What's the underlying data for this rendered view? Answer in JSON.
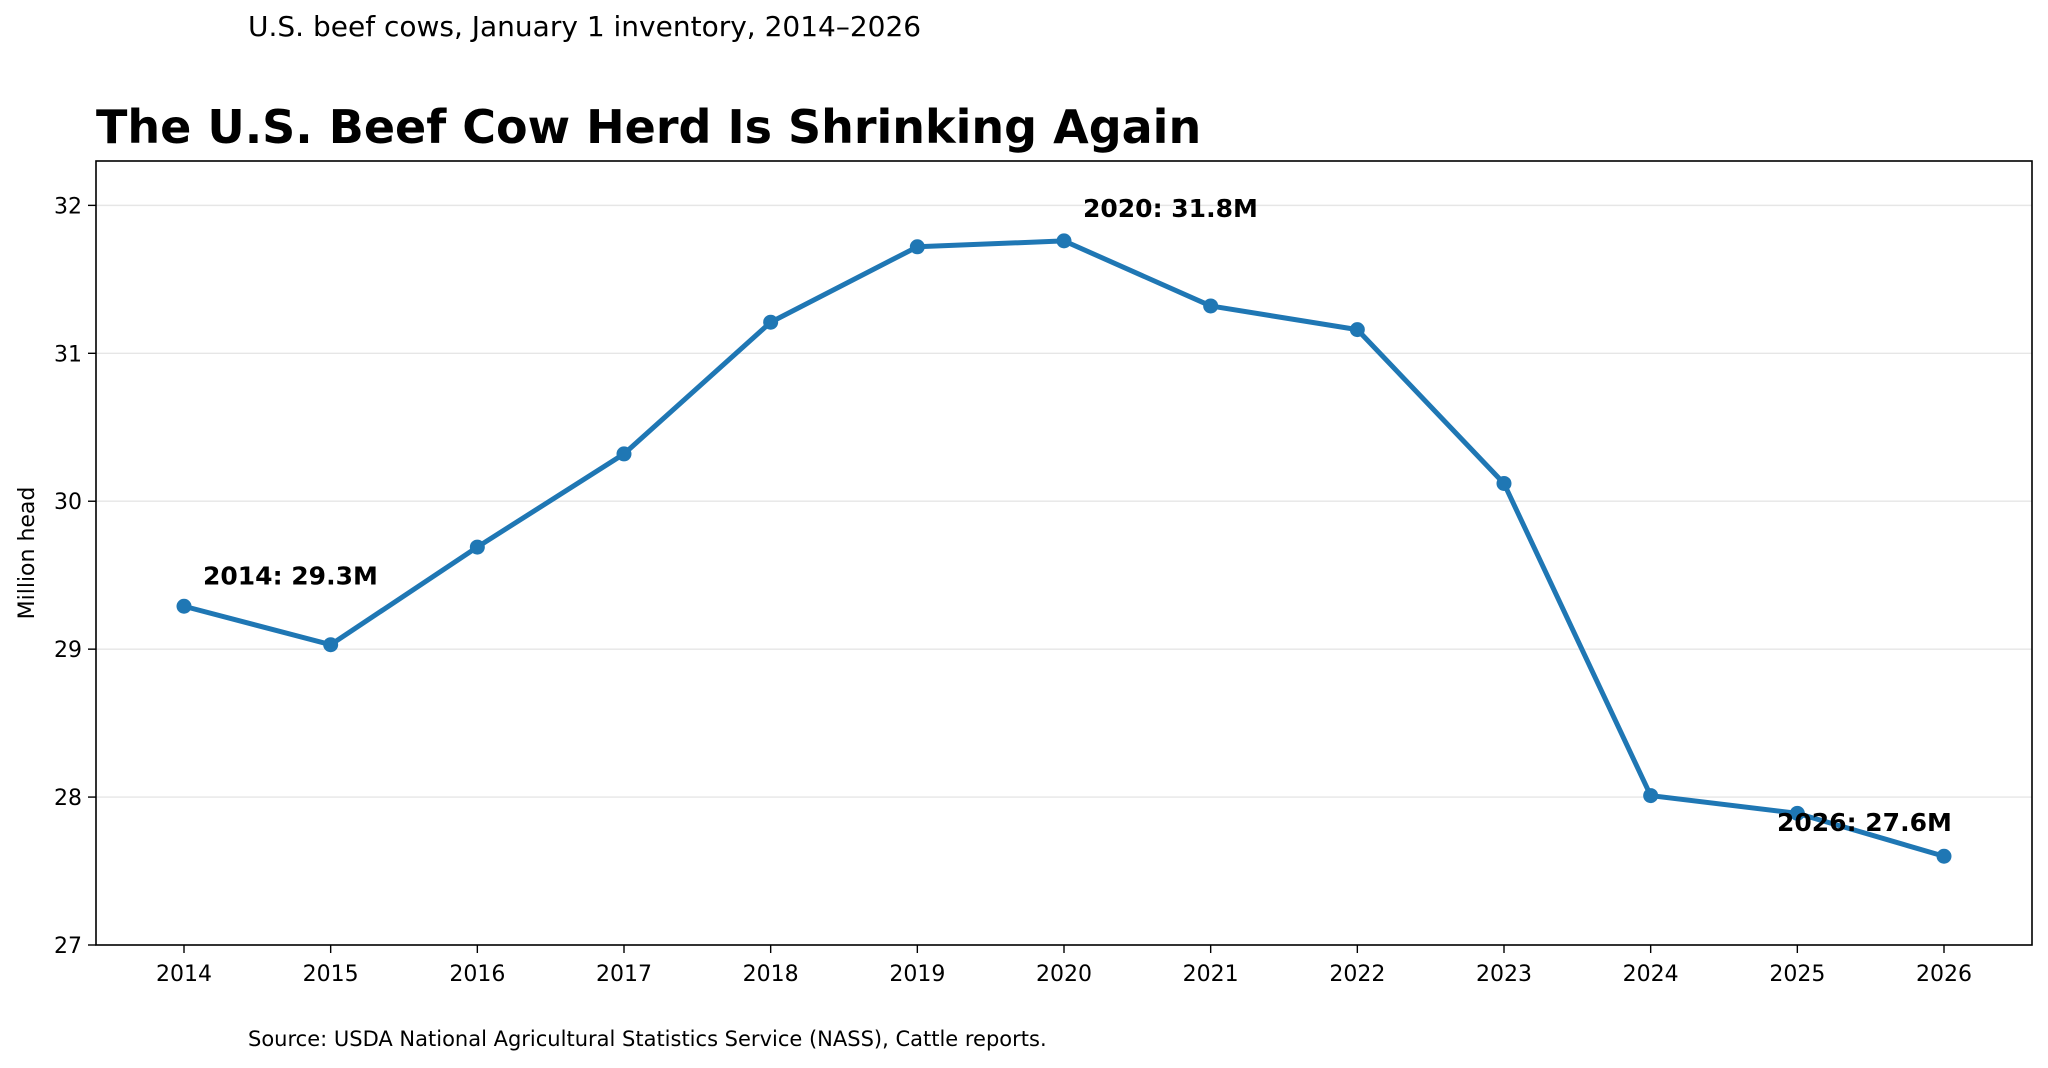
{
  "subtitle": "U.S. beef cows, January 1 inventory, 2014–2026",
  "source": "Source: USDA National Agricultural Statistics Service (NASS), Cattle reports.",
  "colors": {
    "line": "#1f77b4",
    "grid": "#e6e6e6",
    "text": "#000000"
  },
  "chart_data": {
    "type": "line",
    "title": "The U.S. Beef Cow Herd Is Shrinking Again",
    "xlabel": "",
    "ylabel": "Million head",
    "ylim": [
      27,
      32.3
    ],
    "xlim": [
      2013.4,
      2026.6
    ],
    "grid": "horizontal",
    "legend": "none",
    "x": [
      2014,
      2015,
      2016,
      2017,
      2018,
      2019,
      2020,
      2021,
      2022,
      2023,
      2024,
      2025,
      2026
    ],
    "y": [
      29.29,
      29.03,
      29.69,
      30.32,
      31.21,
      31.72,
      31.76,
      31.32,
      31.16,
      30.12,
      28.01,
      27.89,
      27.6
    ],
    "x_ticks": [
      "2014",
      "2015",
      "2016",
      "2017",
      "2018",
      "2019",
      "2020",
      "2021",
      "2022",
      "2023",
      "2024",
      "2025",
      "2026"
    ],
    "y_ticks": [
      "27",
      "28",
      "29",
      "30",
      "31",
      "32"
    ],
    "annotations": [
      {
        "text": "2014: 29.3M",
        "x": 2014,
        "y": 29.29
      },
      {
        "text": "2020: 31.8M",
        "x": 2020,
        "y": 31.76
      },
      {
        "text": "2026: 27.6M",
        "x": 2026,
        "y": 27.6
      }
    ]
  }
}
